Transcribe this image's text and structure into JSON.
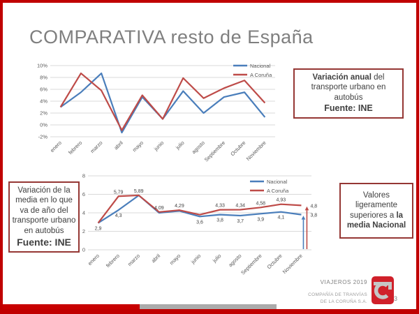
{
  "slide": {
    "title": "COMPARATIVA resto de España",
    "page_number": "3"
  },
  "colors": {
    "border_red": "#c00000",
    "box_border": "#953734",
    "nacional_blue": "#4a7ebb",
    "coruna_red": "#be4b48",
    "title_gray": "#7f7f7f",
    "bar_gray": "#ababab",
    "logo_red": "#d0202a"
  },
  "boxes": {
    "top_right": {
      "bold": "Variación anual",
      "normal": " del transporte urbano en autobús",
      "source": "Fuente: INE"
    },
    "bottom_left": {
      "text": "Variación de la media en lo que va  de año del transporte urbano en autobús",
      "source": "Fuente: INE"
    },
    "bottom_right": {
      "normal": "Valores ligeramente superiores  a ",
      "bold": "la media Nacional"
    }
  },
  "footer": {
    "viajeros": "VIAJEROS 2019",
    "company_line1": "COMPAÑÍA DE TRANVÍAS",
    "company_line2": "DE LA CORUÑA S.A.",
    "logo": "tranvias-coruna-logo"
  },
  "chart_data": [
    {
      "type": "line",
      "title": "",
      "categories": [
        "enero",
        "febrero",
        "marzo",
        "abril",
        "mayo",
        "junio",
        "julio",
        "agosto",
        "Septiembre",
        "Octubre",
        "Noviembre"
      ],
      "series": [
        {
          "name": "Nacional",
          "color": "#4a7ebb",
          "values": [
            3.0,
            5.5,
            8.7,
            -1.3,
            4.7,
            1.0,
            5.7,
            2.0,
            4.7,
            5.5,
            1.3
          ]
        },
        {
          "name": "A Coruña",
          "color": "#be4b48",
          "values": [
            3.0,
            8.7,
            5.8,
            -0.9,
            5.0,
            1.0,
            7.9,
            4.5,
            6.2,
            7.5,
            3.7
          ]
        }
      ],
      "ylim": [
        -2,
        10
      ],
      "ytick_step": 2,
      "ytick_labels": [
        "10%",
        "8%",
        "6%",
        "4%",
        "2%",
        "0%",
        "-2%"
      ],
      "legend_position": "top-right",
      "grid": true
    },
    {
      "type": "line",
      "title": "",
      "categories": [
        "enero",
        "febrero",
        "marzo",
        "abril",
        "mayo",
        "junio",
        "julio",
        "agosto",
        "Septiembre",
        "Octubre",
        "Noviembre"
      ],
      "series": [
        {
          "name": "Nacional",
          "color": "#4a7ebb",
          "values": [
            2.9,
            4.3,
            5.89,
            4.0,
            4.2,
            3.6,
            3.8,
            3.7,
            3.9,
            4.1,
            3.8
          ],
          "labels": [
            "2,9",
            "4,3",
            "",
            "",
            "",
            "3,6",
            "3,8",
            "3,7",
            "3,9",
            "4,1",
            "3,8"
          ]
        },
        {
          "name": "A Coruña",
          "color": "#be4b48",
          "values": [
            2.9,
            5.79,
            5.89,
            4.09,
            4.29,
            3.8,
            4.33,
            4.34,
            4.58,
            4.93,
            4.8
          ],
          "labels": [
            "",
            "5,79",
            "5,89",
            "4,09",
            "4,29",
            "",
            "4,33",
            "4,34",
            "4,58",
            "4,93",
            "4,8"
          ]
        }
      ],
      "ylim": [
        0,
        8
      ],
      "ytick_step": 2,
      "ytick_labels": [
        "8",
        "6",
        "4",
        "2",
        "0"
      ],
      "legend_position": "top-right",
      "grid": true,
      "end_arrows": [
        {
          "series": "Nacional",
          "label": "3,8"
        },
        {
          "series": "A Coruña",
          "label": "4,8"
        }
      ]
    }
  ]
}
